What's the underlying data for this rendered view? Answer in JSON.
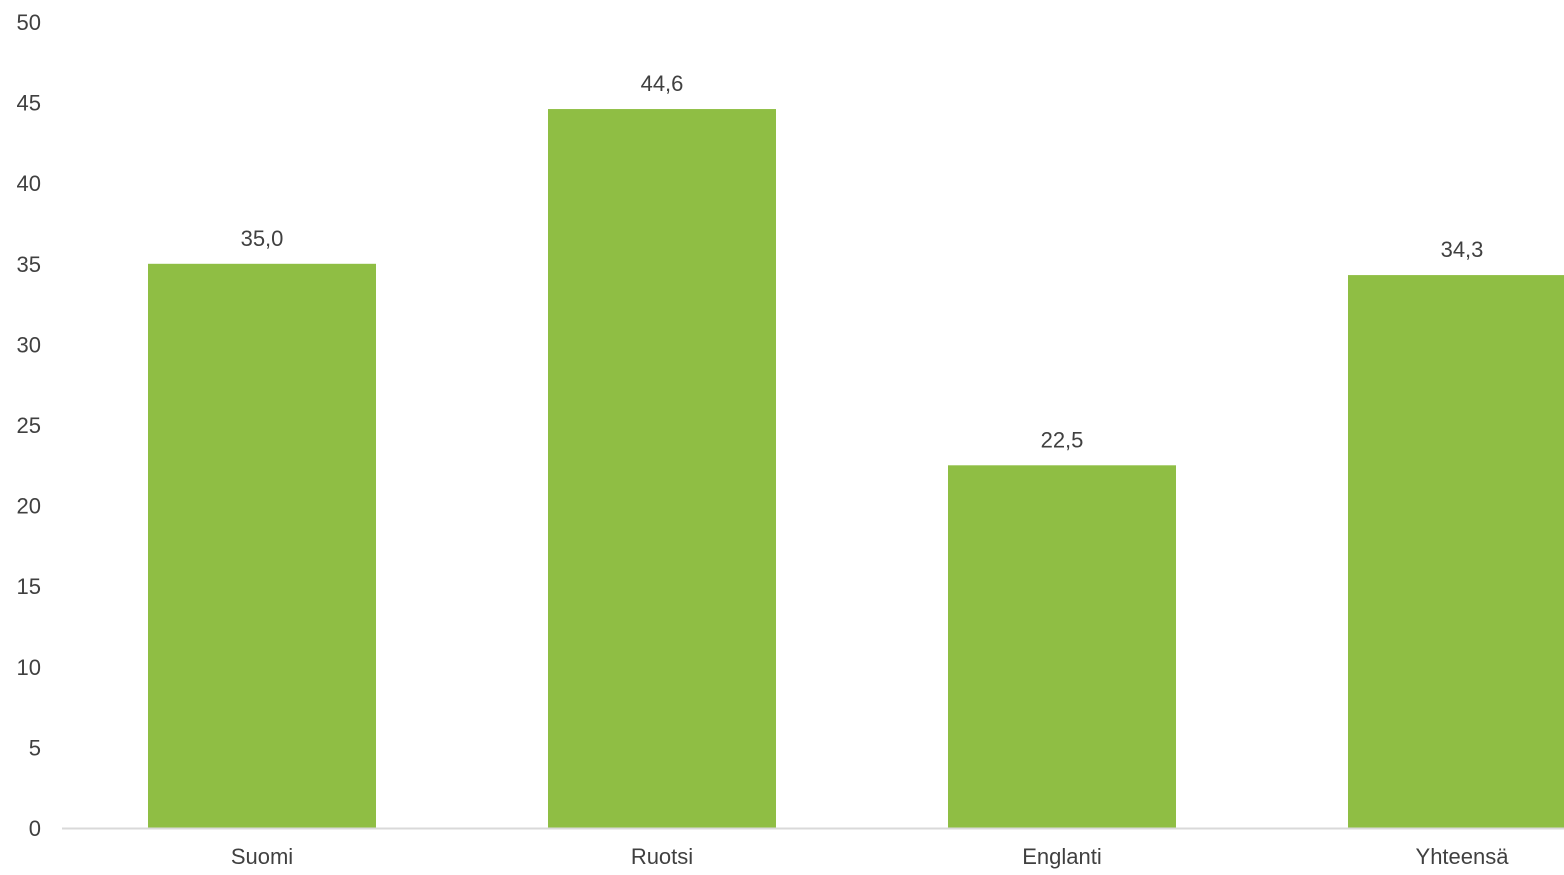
{
  "chart_data": {
    "type": "bar",
    "categories": [
      "Suomi",
      "Ruotsi",
      "Englanti",
      "Yhteensä"
    ],
    "values": [
      35.0,
      44.6,
      22.5,
      34.3
    ],
    "value_labels": [
      "35,0",
      "44,6",
      "22,5",
      "34,3"
    ],
    "title": "",
    "xlabel": "",
    "ylabel": "",
    "ylim": [
      0,
      50
    ],
    "yticks": [
      0,
      5,
      10,
      15,
      20,
      25,
      30,
      35,
      40,
      45,
      50
    ],
    "grid": false,
    "legend": "none",
    "bar_color": "#8fbe44",
    "axis_color": "#d9d9d9",
    "text_color": "#404040"
  }
}
